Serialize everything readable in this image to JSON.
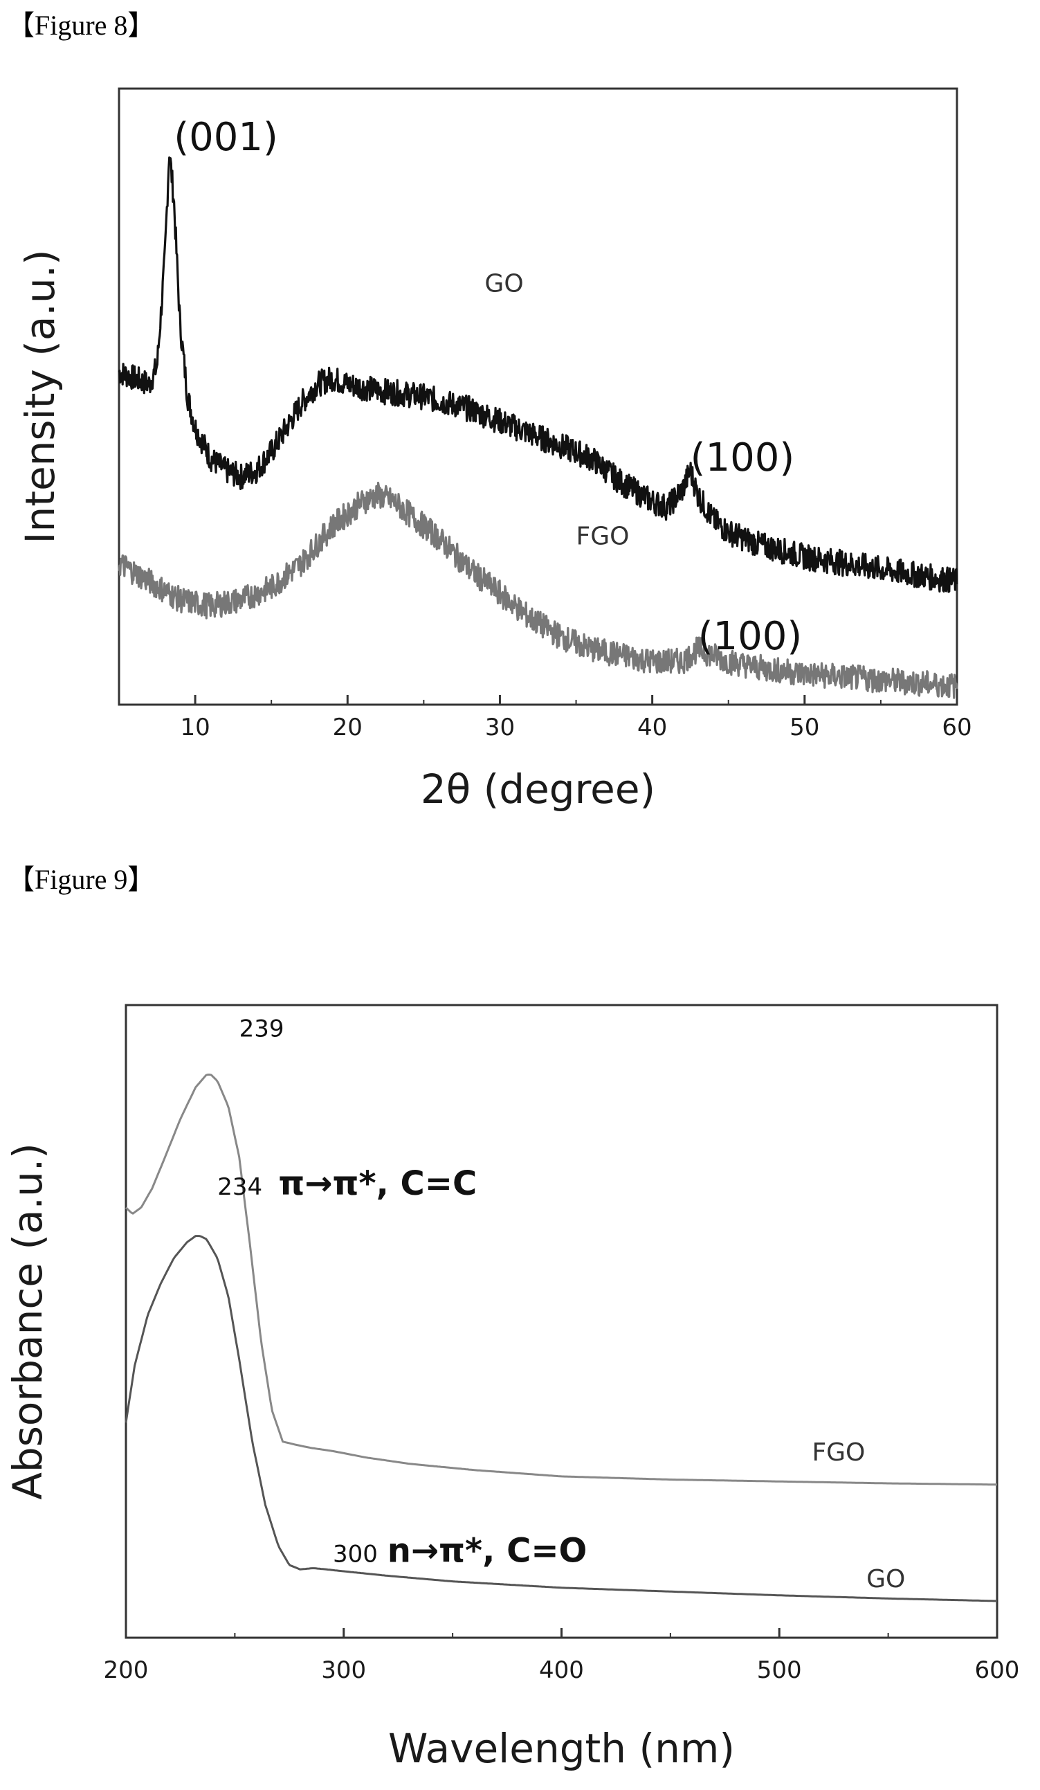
{
  "figures": [
    {
      "label": "【Figure 8】"
    },
    {
      "label": "【Figure 9】"
    }
  ],
  "chart_data": [
    {
      "type": "line",
      "xlabel": "2θ (degree)",
      "ylabel": "Intensity (a.u.)",
      "xlim": [
        5,
        60
      ],
      "ylim": [
        0,
        100
      ],
      "xticks": [
        10,
        20,
        30,
        40,
        50,
        60
      ],
      "yticks": [],
      "grid": false,
      "noisy": true,
      "series": [
        {
          "name": "GO",
          "color": "#111111",
          "x": [
            5,
            6,
            7,
            7.5,
            8,
            8.3,
            8.6,
            9,
            9.5,
            10,
            11,
            12,
            13,
            14,
            15,
            16,
            17,
            18,
            19,
            20,
            22,
            25,
            28,
            30,
            32,
            34,
            36,
            38,
            40,
            41,
            42,
            42.5,
            43,
            44,
            45,
            47,
            50,
            55,
            60
          ],
          "y": [
            54,
            53,
            52,
            55,
            72,
            90,
            82,
            62,
            50,
            45,
            40,
            38,
            37,
            38,
            41,
            45,
            49,
            52,
            53,
            52,
            51,
            50,
            48,
            46,
            44,
            42,
            40,
            36,
            33,
            32,
            35,
            38,
            34,
            30,
            28,
            26,
            24,
            22,
            20
          ]
        },
        {
          "name": "FGO",
          "color": "#777777",
          "x": [
            5,
            7,
            9,
            11,
            13,
            15,
            17,
            19,
            21,
            22,
            23,
            24,
            26,
            28,
            30,
            32,
            34,
            36,
            38,
            40,
            42,
            43,
            44,
            45,
            47,
            50,
            55,
            60
          ],
          "y": [
            23,
            20,
            17,
            16,
            17,
            19,
            23,
            29,
            33,
            34,
            33,
            31,
            27,
            22,
            18,
            14,
            11,
            9,
            8,
            7,
            7,
            9,
            8,
            7,
            6,
            5,
            4,
            3
          ]
        }
      ],
      "annotations": [
        {
          "text": "(001)",
          "x": 8.6,
          "y": 90
        },
        {
          "text": "GO",
          "x": 29,
          "y": 67
        },
        {
          "text": "(100)",
          "x": 42.5,
          "y": 38
        },
        {
          "text": "FGO",
          "x": 35,
          "y": 26
        },
        {
          "text": "(100)",
          "x": 43,
          "y": 9
        }
      ]
    },
    {
      "type": "line",
      "xlabel": "Wavelength (nm)",
      "ylabel": "Absorbance (a.u.)",
      "xlim": [
        200,
        600
      ],
      "ylim": [
        0,
        100
      ],
      "xticks": [
        200,
        300,
        400,
        500,
        600
      ],
      "yticks": [],
      "grid": false,
      "noisy": false,
      "series": [
        {
          "name": "FGO",
          "color": "#888888",
          "x": [
            200,
            203,
            207,
            212,
            218,
            225,
            232,
            237,
            239,
            242,
            247,
            252,
            257,
            262,
            267,
            272,
            278,
            285,
            295,
            310,
            330,
            360,
            400,
            450,
            500,
            550,
            600
          ],
          "y": [
            68,
            67,
            68,
            71,
            76,
            82,
            87,
            89,
            89,
            88,
            84,
            76,
            62,
            47,
            36,
            31,
            30.5,
            30,
            29.5,
            28.5,
            27.5,
            26.5,
            25.5,
            25,
            24.7,
            24.4,
            24.2
          ]
        },
        {
          "name": "GO",
          "color": "#555555",
          "x": [
            200,
            204,
            210,
            216,
            222,
            228,
            232,
            234,
            237,
            242,
            247,
            252,
            258,
            264,
            270,
            275,
            280,
            286,
            292,
            300,
            320,
            350,
            400,
            450,
            500,
            550,
            600
          ],
          "y": [
            34,
            43,
            51,
            56,
            60,
            62.5,
            63.5,
            63.5,
            63,
            60,
            54,
            44,
            31,
            21,
            14.5,
            11.5,
            10.8,
            11,
            10.8,
            10.5,
            9.8,
            8.9,
            7.9,
            7.3,
            6.7,
            6.2,
            5.8
          ]
        }
      ],
      "annotations": [
        {
          "text": "239",
          "x": 252,
          "y": 95
        },
        {
          "text": "234",
          "x": 242,
          "y": 70
        },
        {
          "text": "π→π*, C=C",
          "x": 270,
          "y": 70,
          "bold": true
        },
        {
          "text": "FGO",
          "x": 515,
          "y": 28
        },
        {
          "text": "300",
          "x": 295,
          "y": 12
        },
        {
          "text": "n→π*, C=O",
          "x": 320,
          "y": 12,
          "bold": true
        },
        {
          "text": "GO",
          "x": 540,
          "y": 8
        }
      ]
    }
  ]
}
